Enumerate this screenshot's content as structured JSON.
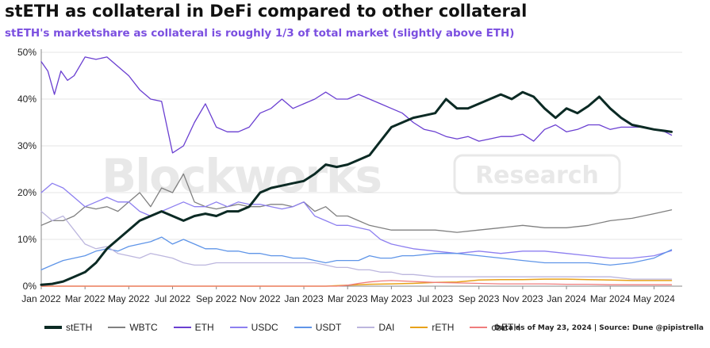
{
  "title": "stETH as collateral in DeFi compared to other collateral",
  "subtitle": "stETH's marketshare as collateral is roughly 1/3 of total market (slightly above ETH)",
  "source": "Data as of May 23, 2024 | Source: Dune @pipistrella",
  "watermark": {
    "brand": "Blockworks",
    "badge": "Research"
  },
  "chart_data": {
    "type": "line",
    "ylim": [
      0,
      50
    ],
    "yticks": [
      0,
      10,
      20,
      30,
      40,
      50
    ],
    "ytick_labels": [
      "0%",
      "10%",
      "20%",
      "30%",
      "40%",
      "50%"
    ],
    "xlim": [
      0,
      29
    ],
    "xtick_labels": [
      "Jan 2022",
      "Mar 2022",
      "May 2022",
      "Jul 2022",
      "Sep 2022",
      "Nov 2022",
      "Jan 2023",
      "Mar 2023",
      "May 2023",
      "Jul 2023",
      "Sep 2023",
      "Nov 2023",
      "Jan 2024",
      "Mar 2024",
      "May 2024"
    ],
    "xlabel": "",
    "ylabel": "",
    "grid": "horizontal",
    "legend_position": "bottom",
    "series": [
      {
        "name": "WBTC",
        "color": "#808080",
        "width": 1.3,
        "x": [
          0,
          0.5,
          1,
          1.5,
          2,
          2.5,
          3,
          3.5,
          4,
          4.5,
          5,
          5.5,
          6,
          6.5,
          7,
          7.5,
          8,
          8.5,
          9,
          9.5,
          10,
          10.5,
          11,
          11.5,
          12,
          12.5,
          13,
          13.5,
          14,
          14.5,
          15,
          15.5,
          16,
          16.5,
          17,
          18,
          19,
          20,
          21,
          22,
          23,
          24,
          25,
          26,
          27,
          28,
          28.8
        ],
        "y": [
          13,
          14,
          14,
          15,
          17,
          16.5,
          17,
          16,
          18,
          20,
          17,
          21,
          20,
          24,
          18,
          17,
          16.5,
          17,
          17.5,
          17,
          17,
          17.5,
          17.5,
          17,
          18,
          16,
          17,
          15,
          15,
          14,
          13,
          12.5,
          12,
          12,
          12,
          12,
          11.5,
          12,
          12.5,
          13,
          12.5,
          12.5,
          13,
          14,
          14.5,
          15.5,
          16.3
        ]
      },
      {
        "name": "ETH",
        "color": "#6a3fd1",
        "width": 1.3,
        "x": [
          0,
          0.3,
          0.6,
          0.9,
          1.2,
          1.5,
          2,
          2.5,
          3,
          3.5,
          4,
          4.5,
          5,
          5.5,
          6,
          6.5,
          7,
          7.5,
          8,
          8.5,
          9,
          9.5,
          10,
          10.5,
          11,
          11.5,
          12,
          12.5,
          13,
          13.5,
          14,
          14.5,
          15,
          15.5,
          16,
          16.5,
          17,
          17.5,
          18,
          18.5,
          19,
          19.5,
          20,
          20.5,
          21,
          21.5,
          22,
          22.5,
          23,
          23.5,
          24,
          24.5,
          25,
          25.5,
          26,
          26.5,
          27,
          27.5,
          28,
          28.5,
          28.8
        ],
        "y": [
          48,
          46,
          41,
          46,
          44,
          45,
          49,
          48.5,
          49,
          47,
          45,
          42,
          40,
          39.5,
          28.5,
          30,
          35,
          39,
          34,
          33,
          33,
          34,
          37,
          38,
          40,
          38,
          39,
          40,
          41.5,
          40,
          40,
          41,
          40,
          39,
          38,
          37,
          35,
          33.5,
          33,
          32,
          31.5,
          32,
          31,
          31.5,
          32,
          32,
          32.5,
          31,
          33.5,
          34.5,
          33,
          33.5,
          34.5,
          34.5,
          33.5,
          34,
          34,
          34,
          33.5,
          33,
          32.3
        ]
      },
      {
        "name": "USDC",
        "color": "#8d7ff0",
        "width": 1.3,
        "x": [
          0,
          0.5,
          1,
          1.5,
          2,
          2.5,
          3,
          3.5,
          4,
          4.5,
          5,
          5.5,
          6,
          6.5,
          7,
          7.5,
          8,
          8.5,
          9,
          9.5,
          10,
          10.5,
          11,
          11.5,
          12,
          12.5,
          13,
          13.5,
          14,
          14.5,
          15,
          15.5,
          16,
          16.5,
          17,
          18,
          19,
          20,
          21,
          22,
          23,
          24,
          25,
          26,
          27,
          28,
          28.8
        ],
        "y": [
          20,
          22,
          21,
          19,
          17,
          18,
          19,
          18,
          18,
          16,
          15,
          16,
          17,
          18,
          17,
          17,
          18,
          17,
          18,
          17.5,
          17.5,
          17,
          16.5,
          17,
          18,
          15,
          14,
          13,
          13,
          12.5,
          12,
          10,
          9,
          8.5,
          8,
          7.5,
          7,
          7.5,
          7,
          7.5,
          7.5,
          7,
          6.5,
          6,
          6,
          6.5,
          7.6
        ]
      },
      {
        "name": "USDT",
        "color": "#5f95e8",
        "width": 1.3,
        "x": [
          0,
          0.5,
          1,
          1.5,
          2,
          2.5,
          3,
          3.5,
          4,
          4.5,
          5,
          5.5,
          6,
          6.5,
          7,
          7.5,
          8,
          8.5,
          9,
          9.5,
          10,
          10.5,
          11,
          11.5,
          12,
          12.5,
          13,
          13.5,
          14,
          14.5,
          15,
          15.5,
          16,
          16.5,
          17,
          18,
          19,
          20,
          21,
          22,
          23,
          24,
          25,
          26,
          27,
          28,
          28.8
        ],
        "y": [
          3.5,
          4.5,
          5.5,
          6,
          6.5,
          7.5,
          8,
          7.5,
          8.5,
          9,
          9.5,
          10.5,
          9,
          10,
          9,
          8,
          8,
          7.5,
          7.5,
          7,
          7,
          6.5,
          6.5,
          6,
          6,
          5.5,
          5,
          5.5,
          5.5,
          5.5,
          6.5,
          6,
          6,
          6.5,
          6.5,
          7,
          7,
          6.5,
          6,
          5.5,
          5,
          5,
          5,
          4.5,
          5,
          6,
          7.8
        ]
      },
      {
        "name": "DAI",
        "color": "#bcb6de",
        "width": 1.3,
        "x": [
          0,
          0.5,
          1,
          1.5,
          2,
          2.5,
          3,
          3.5,
          4,
          4.5,
          5,
          5.5,
          6,
          6.5,
          7,
          7.5,
          8,
          8.5,
          9,
          9.5,
          10,
          10.5,
          11,
          11.5,
          12,
          12.5,
          13,
          13.5,
          14,
          14.5,
          15,
          15.5,
          16,
          16.5,
          17,
          18,
          19,
          20,
          21,
          22,
          23,
          24,
          25,
          26,
          27,
          28,
          28.8
        ],
        "y": [
          16,
          14,
          15,
          12,
          9,
          8,
          8.5,
          7,
          6.5,
          6,
          7,
          6.5,
          6,
          5,
          4.5,
          4.5,
          5,
          5,
          5,
          5,
          5,
          5,
          5,
          5,
          5,
          5,
          4.5,
          4,
          4,
          3.5,
          3.5,
          3,
          3,
          2.5,
          2.5,
          2,
          2,
          2,
          2,
          2,
          2,
          2,
          2,
          2,
          1.5,
          1.5,
          1.5
        ]
      },
      {
        "name": "rETH",
        "color": "#e8a21a",
        "width": 1.5,
        "x": [
          0,
          2,
          4,
          6,
          8,
          10,
          12,
          13,
          14,
          15,
          16,
          17,
          18,
          19,
          20,
          21,
          22,
          23,
          24,
          25,
          26,
          27,
          28,
          28.8
        ],
        "y": [
          0,
          0,
          0,
          0,
          0,
          0,
          0,
          0,
          0.2,
          0.4,
          0.5,
          0.6,
          0.8,
          0.9,
          1.3,
          1.4,
          1.4,
          1.5,
          1.5,
          1.4,
          1.3,
          1.2,
          1.2,
          1.2
        ]
      },
      {
        "name": "cbETH",
        "color": "#ef7d7d",
        "width": 1.3,
        "x": [
          0,
          2,
          4,
          6,
          8,
          10,
          12,
          13,
          13.5,
          14,
          14.5,
          15,
          15.5,
          16,
          16.5,
          17,
          17.5,
          18,
          19,
          20,
          21,
          22,
          23,
          24,
          25,
          26,
          27,
          28,
          28.8
        ],
        "y": [
          0,
          0,
          0,
          0,
          0,
          0,
          0,
          0,
          0,
          0.2,
          0.6,
          0.9,
          1.1,
          1.2,
          1.1,
          1,
          0.9,
          0.8,
          0.7,
          0.6,
          0.5,
          0.5,
          0.5,
          0.4,
          0.4,
          0.3,
          0.3,
          0.3,
          0.3
        ]
      },
      {
        "name": "stETH",
        "color": "#0b2a24",
        "width": 3,
        "x": [
          0,
          0.5,
          1,
          1.5,
          2,
          2.5,
          3,
          3.5,
          4,
          4.5,
          5,
          5.5,
          6,
          6.5,
          7,
          7.5,
          8,
          8.5,
          9,
          9.5,
          10,
          10.5,
          11,
          11.5,
          12,
          12.5,
          13,
          13.5,
          14,
          14.5,
          15,
          15.5,
          16,
          16.5,
          17,
          17.5,
          18,
          18.5,
          19,
          19.5,
          20,
          20.5,
          21,
          21.5,
          22,
          22.5,
          23,
          23.5,
          24,
          24.5,
          25,
          25.5,
          26,
          26.5,
          27,
          27.5,
          28,
          28.5,
          28.8
        ],
        "y": [
          0.3,
          0.5,
          1,
          2,
          3,
          5,
          8,
          10,
          12,
          14,
          15,
          16,
          15,
          14,
          15,
          15.5,
          15,
          16,
          16,
          17,
          20,
          21,
          21.5,
          22,
          22.5,
          24,
          26,
          25.5,
          26,
          27,
          28,
          31,
          34,
          35,
          36,
          36.5,
          37,
          40,
          38,
          38,
          39,
          40,
          41,
          40,
          41.5,
          40.5,
          38,
          36,
          38,
          37,
          38.5,
          40.5,
          38,
          36,
          34.5,
          34,
          33.5,
          33.2,
          33
        ]
      }
    ]
  },
  "legend": [
    {
      "name": "stETH",
      "color": "#0b2a24",
      "bold": true
    },
    {
      "name": "WBTC",
      "color": "#808080",
      "bold": false
    },
    {
      "name": "ETH",
      "color": "#6a3fd1",
      "bold": false
    },
    {
      "name": "USDC",
      "color": "#8d7ff0",
      "bold": false
    },
    {
      "name": "USDT",
      "color": "#5f95e8",
      "bold": false
    },
    {
      "name": "DAI",
      "color": "#bcb6de",
      "bold": false
    },
    {
      "name": "rETH",
      "color": "#e8a21a",
      "bold": false
    },
    {
      "name": "cbETH",
      "color": "#ef7d7d",
      "bold": false
    }
  ]
}
